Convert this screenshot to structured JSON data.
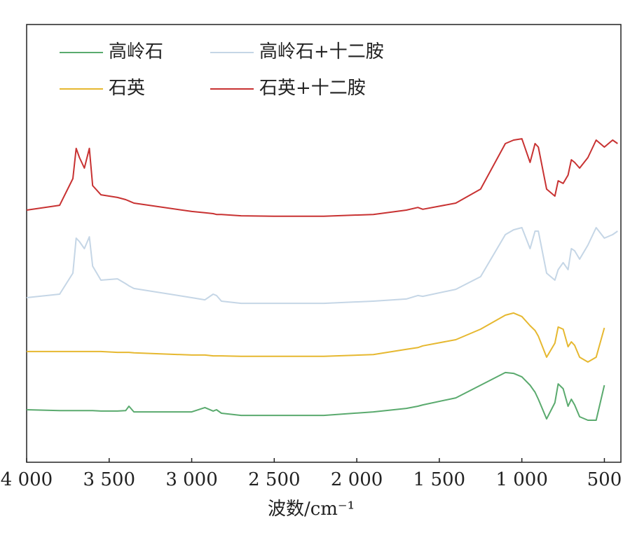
{
  "chart_data": {
    "type": "line",
    "x_label": "波数/cm⁻¹",
    "x": [
      4000,
      3800,
      3720,
      3700,
      3680,
      3650,
      3620,
      3600,
      3550,
      3450,
      3400,
      3380,
      3350,
      3000,
      2920,
      2870,
      2850,
      2820,
      2700,
      2500,
      2200,
      1900,
      1700,
      1630,
      1600,
      1400,
      1250,
      1100,
      1050,
      1000,
      950,
      920,
      900,
      850,
      800,
      780,
      750,
      720,
      700,
      680,
      650,
      600,
      550,
      500,
      450,
      420
    ],
    "xlim": [
      4000,
      400
    ],
    "xticks": [
      {
        "value": 4000,
        "label": "4 000"
      },
      {
        "value": 3500,
        "label": "3 500"
      },
      {
        "value": 3000,
        "label": "3 000"
      },
      {
        "value": 2500,
        "label": "2 500"
      },
      {
        "value": 2000,
        "label": "2 000"
      },
      {
        "value": 1500,
        "label": "1 500"
      },
      {
        "value": 1000,
        "label": "1 000"
      },
      500
    ],
    "ylim": [
      0,
      100
    ],
    "series": [
      {
        "name": "高岭石",
        "color": "#5aaa6e",
        "values": [
          12.0,
          11.8,
          11.8,
          11.8,
          11.8,
          11.8,
          11.8,
          11.8,
          11.7,
          11.7,
          11.8,
          12.8,
          11.5,
          11.5,
          12.5,
          11.7,
          12.0,
          11.2,
          10.7,
          10.7,
          10.7,
          11.5,
          12.3,
          12.8,
          13.1,
          14.7,
          17.6,
          20.5,
          20.3,
          19.5,
          17.6,
          16.0,
          14.4,
          9.9,
          13.6,
          17.9,
          16.8,
          12.8,
          14.4,
          13.1,
          10.4,
          9.6,
          9.6,
          17.6,
          null,
          null
        ]
      },
      {
        "name": "石英",
        "color": "#e6b830",
        "values": [
          25.3,
          25.3,
          25.3,
          25.3,
          25.3,
          25.3,
          25.3,
          25.3,
          25.3,
          25.1,
          25.1,
          25.1,
          25.0,
          24.5,
          24.5,
          24.3,
          24.3,
          24.3,
          24.2,
          24.2,
          24.2,
          24.6,
          25.8,
          26.2,
          26.6,
          28.0,
          30.4,
          33.6,
          34.1,
          33.3,
          31.2,
          30.1,
          28.8,
          24.0,
          27.2,
          30.9,
          30.4,
          26.4,
          27.5,
          26.7,
          24.0,
          22.9,
          24.0,
          30.7,
          null,
          null
        ]
      },
      {
        "name": "高岭石+十二胺",
        "color": "#c5d6e6",
        "values": [
          37.6,
          38.4,
          43.2,
          51.2,
          50.4,
          48.8,
          51.5,
          44.8,
          41.6,
          41.9,
          40.8,
          40.3,
          39.7,
          37.6,
          37.1,
          38.4,
          38.1,
          36.8,
          36.3,
          36.3,
          36.3,
          36.8,
          37.3,
          38.1,
          37.9,
          39.5,
          42.4,
          52.0,
          53.1,
          53.6,
          48.8,
          52.8,
          52.8,
          43.2,
          41.6,
          44.0,
          45.6,
          44.0,
          48.8,
          48.3,
          46.4,
          49.6,
          53.6,
          51.2,
          52.0,
          52.8
        ]
      },
      {
        "name": "石英+十二胺",
        "color": "#c83232",
        "values": [
          57.6,
          58.7,
          64.8,
          71.7,
          69.6,
          67.2,
          71.7,
          63.2,
          61.1,
          60.5,
          60.0,
          59.7,
          59.2,
          57.3,
          57.0,
          56.8,
          56.6,
          56.6,
          56.3,
          56.2,
          56.2,
          56.6,
          57.6,
          58.2,
          57.8,
          59.2,
          62.4,
          72.8,
          73.6,
          73.9,
          68.5,
          72.8,
          72.0,
          62.4,
          60.8,
          64.3,
          63.7,
          65.6,
          69.1,
          68.5,
          67.2,
          69.6,
          73.6,
          72.0,
          73.6,
          72.8
        ]
      }
    ]
  }
}
